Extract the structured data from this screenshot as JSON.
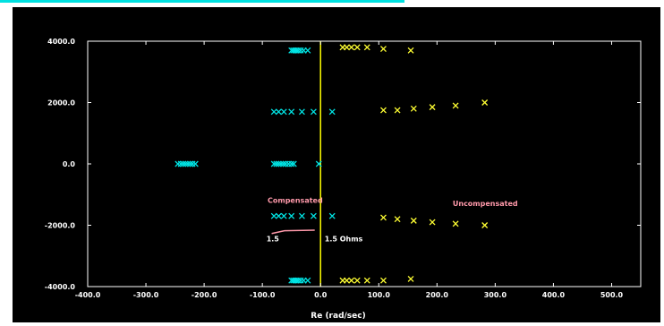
{
  "chart_data": {
    "type": "scatter",
    "title": "",
    "xlabel": "Re (rad/sec)",
    "ylabel": "",
    "xlim": [
      -400,
      550
    ],
    "ylim": [
      -4000,
      4000
    ],
    "x_ticks": [
      -400,
      -300,
      -200,
      -100,
      0,
      100,
      200,
      300,
      400,
      500
    ],
    "x_tick_labels": [
      "-400.0",
      "-300.0",
      "-200.0",
      "-100.0",
      "0.0",
      "100.0",
      "200.0",
      "300.0",
      "400.0",
      "500.0"
    ],
    "y_ticks": [
      4000,
      2000,
      0,
      -2000,
      -4000
    ],
    "y_tick_labels": [
      "4000.0",
      "2000.0",
      "0.0",
      "-2000.0",
      "-4000.0"
    ],
    "grid": false,
    "background": "#000000",
    "marker": "x",
    "zero_line": {
      "x": 0,
      "color": "#ffff00"
    },
    "series": [
      {
        "color": "#00e5e5",
        "points": [
          [
            -245,
            0
          ],
          [
            -240,
            0
          ],
          [
            -236,
            0
          ],
          [
            -232,
            0
          ],
          [
            -228,
            0
          ],
          [
            -224,
            0
          ],
          [
            -220,
            0
          ],
          [
            -215,
            0
          ],
          [
            -80,
            0
          ],
          [
            -76,
            0
          ],
          [
            -72,
            0
          ],
          [
            -68,
            0
          ],
          [
            -64,
            0
          ],
          [
            -60,
            0
          ],
          [
            -55,
            0
          ],
          [
            -50,
            0
          ],
          [
            -46,
            0
          ],
          [
            -3,
            0
          ],
          [
            -50,
            3700
          ],
          [
            -47,
            3700
          ],
          [
            -44,
            3700
          ],
          [
            -41,
            3700
          ],
          [
            -38,
            3700
          ],
          [
            -34,
            3700
          ],
          [
            -29,
            3700
          ],
          [
            -22,
            3700
          ],
          [
            -50,
            -3800
          ],
          [
            -47,
            -3800
          ],
          [
            -44,
            -3800
          ],
          [
            -41,
            -3800
          ],
          [
            -38,
            -3800
          ],
          [
            -34,
            -3800
          ],
          [
            -29,
            -3800
          ],
          [
            -22,
            -3800
          ],
          [
            -80,
            1700
          ],
          [
            -72,
            1700
          ],
          [
            -63,
            1700
          ],
          [
            -50,
            1700
          ],
          [
            -32,
            1700
          ],
          [
            -12,
            1700
          ],
          [
            20,
            1700
          ],
          [
            -80,
            -1700
          ],
          [
            -72,
            -1700
          ],
          [
            -63,
            -1700
          ],
          [
            -50,
            -1700
          ],
          [
            -32,
            -1700
          ],
          [
            -12,
            -1700
          ],
          [
            20,
            -1700
          ]
        ]
      },
      {
        "color": "#ffff33",
        "points": [
          [
            38,
            3800
          ],
          [
            45,
            3800
          ],
          [
            53,
            3800
          ],
          [
            63,
            3800
          ],
          [
            80,
            3800
          ],
          [
            108,
            3750
          ],
          [
            155,
            3700
          ],
          [
            38,
            -3800
          ],
          [
            45,
            -3800
          ],
          [
            53,
            -3800
          ],
          [
            63,
            -3800
          ],
          [
            80,
            -3800
          ],
          [
            108,
            -3800
          ],
          [
            155,
            -3750
          ],
          [
            108,
            1750
          ],
          [
            132,
            1750
          ],
          [
            160,
            1800
          ],
          [
            192,
            1850
          ],
          [
            232,
            1900
          ],
          [
            282,
            2000
          ],
          [
            108,
            -1750
          ],
          [
            132,
            -1800
          ],
          [
            160,
            -1850
          ],
          [
            192,
            -1900
          ],
          [
            232,
            -1950
          ],
          [
            282,
            -2000
          ]
        ]
      }
    ],
    "annotations": [
      {
        "text": "Compensated",
        "color": "#ff99aa",
        "x": -91,
        "y": -1270
      },
      {
        "text": "Uncompensated",
        "color": "#ff99aa",
        "x": 227,
        "y": -1370
      },
      {
        "text": "1.5",
        "color": "#ffffff",
        "x": -93,
        "y": -2530
      },
      {
        "text": "1.5 Ohms",
        "color": "#ffffff",
        "x": 7,
        "y": -2530
      }
    ],
    "arrow": {
      "color": "#ff99aa",
      "points": [
        [
          -84,
          -2270
        ],
        [
          -62,
          -2180
        ],
        [
          -10,
          -2160
        ]
      ]
    }
  }
}
